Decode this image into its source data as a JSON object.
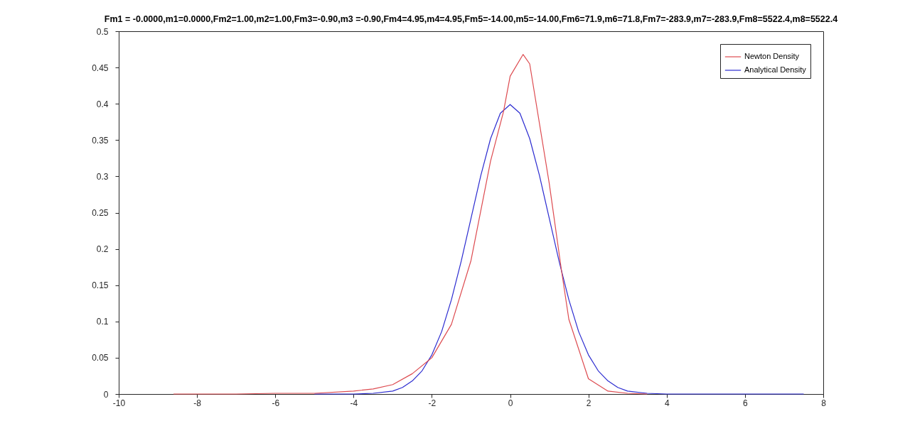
{
  "chart_data": {
    "type": "line",
    "title": "Fm1 = -0.0000,m1=0.0000,Fm2=1.00,m2=1.00,Fm3=-0.90,m3 =-0.90,Fm4=4.95,m4=4.95,Fm5=-14.00,m5=-14.00,Fm6=71.9,m6=71.8,Fm7=-283.9,m7=-283.9,Fm8=5522.4,m8=5522.4",
    "xlim": [
      -10,
      8
    ],
    "xticks": [
      -10,
      -8,
      -6,
      -4,
      -2,
      0,
      2,
      4,
      6,
      8
    ],
    "ylim": [
      0,
      0.5
    ],
    "yticks": [
      0,
      0.05,
      0.1,
      0.15,
      0.2,
      0.25,
      0.3,
      0.35,
      0.4,
      0.45,
      0.5
    ],
    "grid": false,
    "legend": "top right",
    "series": [
      {
        "name": "Newton Density",
        "color": "#dd4a4f",
        "x": [
          -8.6,
          -7,
          -6,
          -5,
          -4,
          -3.5,
          -3,
          -2.5,
          -2,
          -1.5,
          -1,
          -0.5,
          -0.17,
          0,
          0.33,
          0.5,
          1,
          1.31,
          1.5,
          2,
          2.5,
          3,
          3.5
        ],
        "values": [
          0,
          0,
          0.001,
          0.001,
          0.004,
          0.007,
          0.013,
          0.028,
          0.05,
          0.096,
          0.184,
          0.321,
          0.389,
          0.438,
          0.468,
          0.455,
          0.29,
          0.171,
          0.103,
          0.021,
          0.004,
          0.001,
          0
        ]
      },
      {
        "name": "Analytical Density",
        "color": "#2b2bd0",
        "x": [
          -5,
          -4,
          -3.5,
          -3,
          -2.75,
          -2.5,
          -2.25,
          -2,
          -1.75,
          -1.5,
          -1.25,
          -1,
          -0.75,
          -0.5,
          -0.25,
          0,
          0.25,
          0.5,
          0.75,
          1,
          1.25,
          1.5,
          1.75,
          2,
          2.25,
          2.5,
          2.75,
          3,
          3.5,
          4,
          5,
          7.5
        ],
        "values": [
          0,
          0,
          0.001,
          0.004,
          0.009,
          0.018,
          0.032,
          0.054,
          0.086,
          0.13,
          0.183,
          0.242,
          0.301,
          0.352,
          0.387,
          0.399,
          0.387,
          0.352,
          0.301,
          0.242,
          0.183,
          0.13,
          0.086,
          0.054,
          0.032,
          0.018,
          0.009,
          0.004,
          0.001,
          0,
          0,
          0
        ]
      }
    ]
  }
}
